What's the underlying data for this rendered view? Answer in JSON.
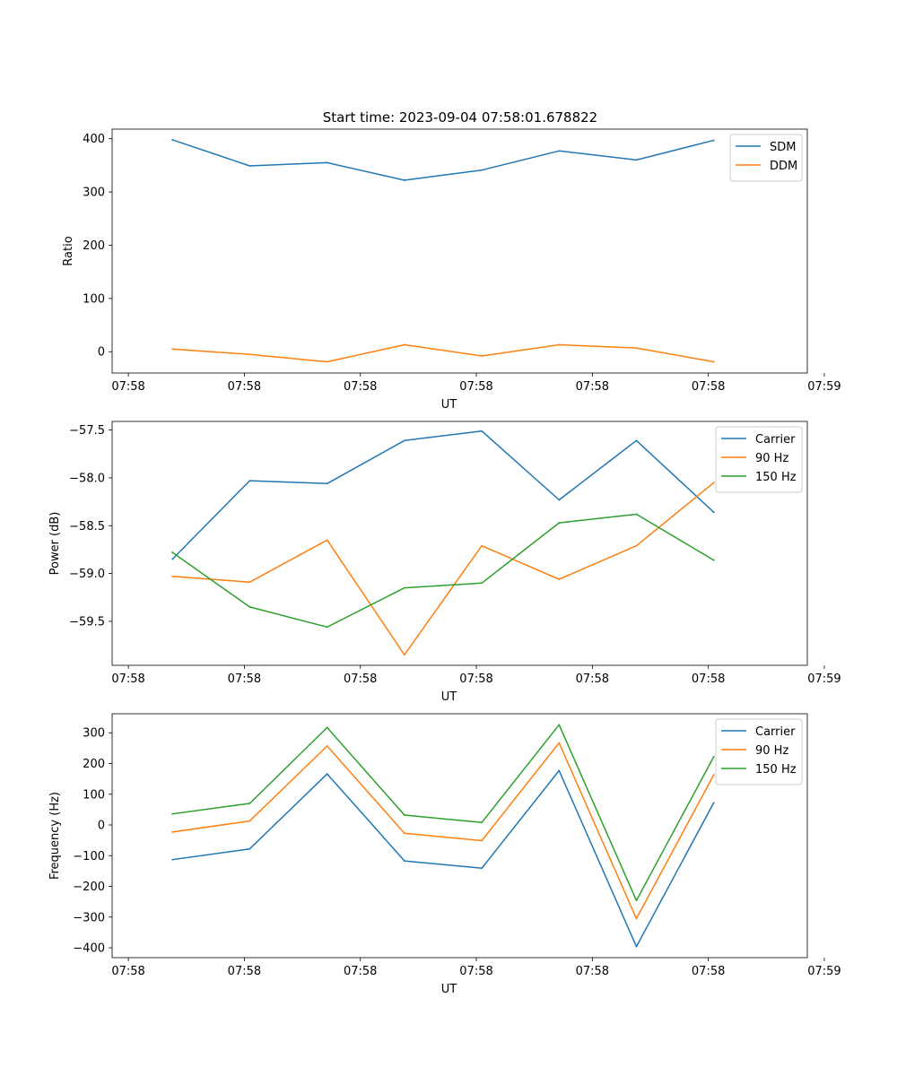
{
  "figure_title": "Start time: 2023-09-04 07:58:01.678822",
  "colors": {
    "c0": "#1f77b4",
    "c1": "#ff7f0e",
    "c2": "#2ca02c"
  },
  "chart_data": [
    {
      "type": "line",
      "title": "Start time: 2023-09-04 07:58:01.678822",
      "xlabel": "UT",
      "ylabel": "Ratio",
      "x": [
        1,
        2,
        3,
        4,
        5,
        6,
        7,
        8
      ],
      "xlim": [
        0.22,
        9.21
      ],
      "xticks": [
        0.43,
        1.93,
        3.43,
        4.93,
        6.43,
        7.93,
        9.43
      ],
      "xtick_labels": [
        "07:58",
        "07:58",
        "07:58",
        "07:58",
        "07:58",
        "07:58",
        "07:59"
      ],
      "ylim": [
        -40,
        418
      ],
      "yticks": [
        0,
        100,
        200,
        300,
        400
      ],
      "ytick_labels": [
        "0",
        "100",
        "200",
        "300",
        "400"
      ],
      "legend": "top-right",
      "series": [
        {
          "name": "SDM",
          "color": "#1f77b4",
          "values": [
            398,
            349,
            355,
            322,
            341,
            377,
            360,
            397
          ]
        },
        {
          "name": "DDM",
          "color": "#ff7f0e",
          "values": [
            5,
            -5,
            -19,
            13,
            -8,
            13,
            7,
            -19
          ]
        }
      ]
    },
    {
      "type": "line",
      "title": "",
      "xlabel": "UT",
      "ylabel": "Power (dB)",
      "x": [
        1,
        2,
        3,
        4,
        5,
        6,
        7,
        8
      ],
      "xlim": [
        0.22,
        9.21
      ],
      "xticks": [
        0.43,
        1.93,
        3.43,
        4.93,
        6.43,
        7.93,
        9.43
      ],
      "xtick_labels": [
        "07:58",
        "07:58",
        "07:58",
        "07:58",
        "07:58",
        "07:58",
        "07:59"
      ],
      "ylim": [
        -59.96,
        -57.41
      ],
      "yticks": [
        -59.5,
        -59.0,
        -58.5,
        -58.0,
        -57.5
      ],
      "ytick_labels": [
        "−59.5",
        "−59.0",
        "−58.5",
        "−58.0",
        "−57.5"
      ],
      "legend": "top-right",
      "series": [
        {
          "name": "Carrier",
          "color": "#1f77b4",
          "values": [
            -58.85,
            -58.03,
            -58.06,
            -57.61,
            -57.51,
            -58.23,
            -57.61,
            -58.36
          ]
        },
        {
          "name": "90 Hz",
          "color": "#ff7f0e",
          "values": [
            -59.03,
            -59.09,
            -58.65,
            -59.85,
            -58.71,
            -59.06,
            -58.71,
            -58.05
          ]
        },
        {
          "name": "150 Hz",
          "color": "#2ca02c",
          "values": [
            -58.78,
            -59.35,
            -59.56,
            -59.15,
            -59.1,
            -58.47,
            -58.38,
            -58.86
          ]
        }
      ]
    },
    {
      "type": "line",
      "title": "",
      "xlabel": "UT",
      "ylabel": "Frequency (Hz)",
      "x": [
        1,
        2,
        3,
        4,
        5,
        6,
        7,
        8
      ],
      "xlim": [
        0.22,
        9.21
      ],
      "xticks": [
        0.43,
        1.93,
        3.43,
        4.93,
        6.43,
        7.93,
        9.43
      ],
      "xtick_labels": [
        "07:58",
        "07:58",
        "07:58",
        "07:58",
        "07:58",
        "07:58",
        "07:59"
      ],
      "ylim": [
        -432,
        362
      ],
      "yticks": [
        -400,
        -300,
        -200,
        -100,
        0,
        100,
        200,
        300
      ],
      "ytick_labels": [
        "−400",
        "−300",
        "−200",
        "−100",
        "0",
        "100",
        "200",
        "300"
      ],
      "legend": "top-right",
      "series": [
        {
          "name": "Carrier",
          "color": "#1f77b4",
          "values": [
            -113,
            -78,
            166,
            -117,
            -141,
            177,
            -396,
            72
          ]
        },
        {
          "name": "90 Hz",
          "color": "#ff7f0e",
          "values": [
            -23,
            13,
            257,
            -27,
            -51,
            267,
            -305,
            163
          ]
        },
        {
          "name": "150 Hz",
          "color": "#2ca02c",
          "values": [
            36,
            70,
            317,
            32,
            8,
            326,
            -246,
            222
          ]
        }
      ]
    }
  ]
}
